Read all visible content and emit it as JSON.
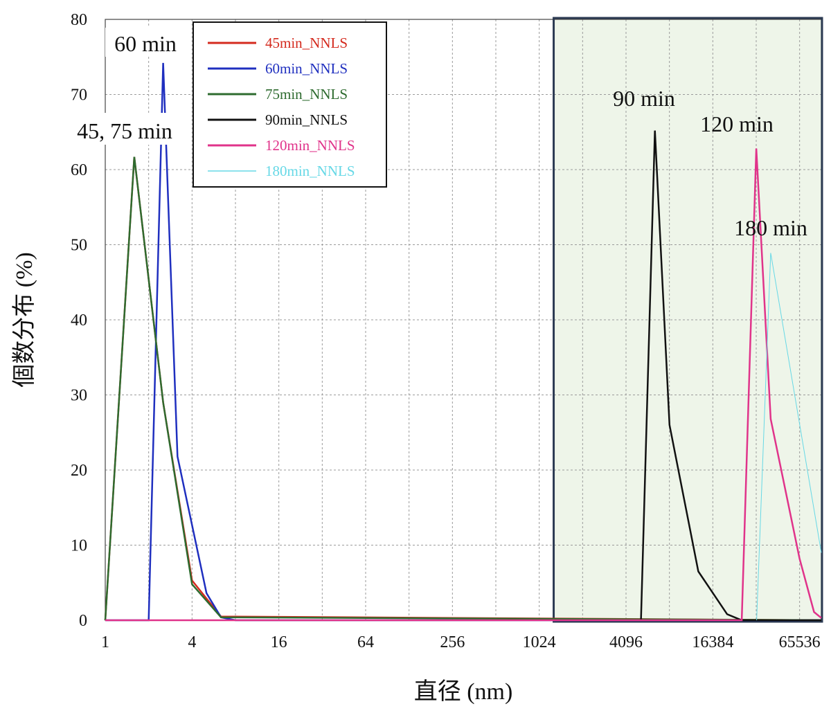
{
  "chart_data": {
    "type": "line",
    "title": "",
    "xlabel": "直径 (nm)",
    "ylabel": "個数分布 (%)",
    "xscale": "log2",
    "xlim": [
      1,
      92682
    ],
    "ylim": [
      0,
      80
    ],
    "grid": true,
    "legend_position": "top-left",
    "x_ticks": [
      "1",
      "4",
      "16",
      "64",
      "256",
      "1024",
      "4096",
      "16384",
      "65536"
    ],
    "y_ticks": [
      "0",
      "10",
      "20",
      "30",
      "40",
      "50",
      "60",
      "70",
      "80"
    ],
    "highlight_region": {
      "x_from": 1290,
      "x_to": 92682,
      "color": "#eef5e9",
      "border": "#2b3a52"
    },
    "series": [
      {
        "name": "45min_NNLS",
        "color": "#d42a1e",
        "width": 2.5,
        "x": [
          1,
          1.59,
          2.52,
          4.0,
          6.35,
          92682
        ],
        "y": [
          0,
          61.7,
          29.0,
          5.3,
          0.5,
          0
        ]
      },
      {
        "name": "60min_NNLS",
        "color": "#1f2fbf",
        "width": 2.5,
        "x": [
          1,
          2.0,
          2.52,
          3.17,
          5.04,
          6.35,
          8.0,
          92682
        ],
        "y": [
          0,
          0,
          74.2,
          21.8,
          3.6,
          0.4,
          0,
          0
        ]
      },
      {
        "name": "75min_NNLS",
        "color": "#2e6b2f",
        "width": 2.5,
        "x": [
          1,
          1.59,
          2.52,
          4.0,
          6.35,
          92682
        ],
        "y": [
          0,
          61.7,
          29.0,
          4.8,
          0.4,
          0
        ]
      },
      {
        "name": "90min_NNLS",
        "color": "#111111",
        "width": 2.5,
        "x": [
          5200,
          6500,
          8200,
          13000,
          20600,
          26000,
          92682
        ],
        "y": [
          0,
          65.2,
          26.0,
          6.5,
          0.8,
          0,
          0
        ]
      },
      {
        "name": "120min_NNLS",
        "color": "#e0338a",
        "width": 2.5,
        "x": [
          1,
          26000,
          32800,
          41300,
          65500,
          82500,
          92682
        ],
        "y": [
          0,
          0,
          62.8,
          26.8,
          8.2,
          1.1,
          0.3
        ]
      },
      {
        "name": "180min_NNLS",
        "color": "#66d8e6",
        "width": 1,
        "x": [
          33000,
          41300,
          92682
        ],
        "y": [
          0,
          48.9,
          9.0
        ]
      }
    ],
    "annotations": [
      {
        "text": "60 min"
      },
      {
        "text": "45, 75 min"
      },
      {
        "text": "90 min"
      },
      {
        "text": "120 min"
      },
      {
        "text": "180 min"
      }
    ]
  }
}
